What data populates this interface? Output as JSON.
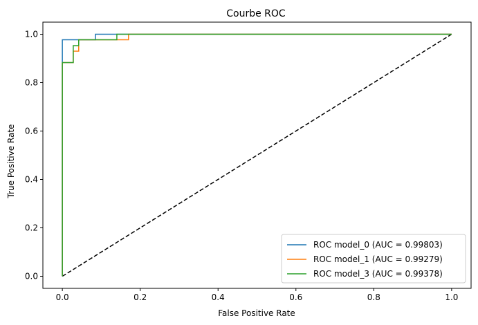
{
  "chart_data": {
    "type": "line",
    "title": "Courbe ROC",
    "xlabel": "False Positive Rate",
    "ylabel": "True Positive Rate",
    "xlim": [
      -0.05,
      1.05
    ],
    "ylim": [
      -0.05,
      1.05
    ],
    "xticks": [
      0.0,
      0.2,
      0.4,
      0.6,
      0.8,
      1.0
    ],
    "yticks": [
      0.0,
      0.2,
      0.4,
      0.6,
      0.8,
      1.0
    ],
    "xtick_labels": [
      "0.0",
      "0.2",
      "0.4",
      "0.6",
      "0.8",
      "1.0"
    ],
    "ytick_labels": [
      "0.0",
      "0.2",
      "0.4",
      "0.6",
      "0.8",
      "1.0"
    ],
    "grid": false,
    "legend_position": "bottom-right",
    "series": [
      {
        "name": "ROC model_0 (AUC = 0.99803)",
        "color": "#1f77b4",
        "x": [
          0.0,
          0.0,
          0.0,
          0.085,
          0.085,
          1.0
        ],
        "y": [
          0.0,
          0.883,
          0.977,
          0.977,
          1.0,
          1.0
        ]
      },
      {
        "name": "ROC model_1 (AUC = 0.99279)",
        "color": "#ff7f0e",
        "x": [
          0.0,
          0.0,
          0.028,
          0.028,
          0.042,
          0.042,
          0.14,
          0.14,
          0.17,
          0.17,
          1.0
        ],
        "y": [
          0.0,
          0.883,
          0.883,
          0.93,
          0.93,
          0.977,
          0.977,
          0.977,
          0.977,
          1.0,
          1.0
        ]
      },
      {
        "name": "ROC model_3 (AUC = 0.99378)",
        "color": "#2ca02c",
        "x": [
          0.0,
          0.0,
          0.028,
          0.028,
          0.042,
          0.042,
          0.14,
          0.14,
          1.0
        ],
        "y": [
          0.0,
          0.883,
          0.883,
          0.953,
          0.953,
          0.977,
          0.977,
          1.0,
          1.0
        ]
      }
    ],
    "reference_line": {
      "x": [
        0.0,
        1.0
      ],
      "y": [
        0.0,
        1.0
      ],
      "color": "#000000",
      "style": "dashed"
    }
  }
}
